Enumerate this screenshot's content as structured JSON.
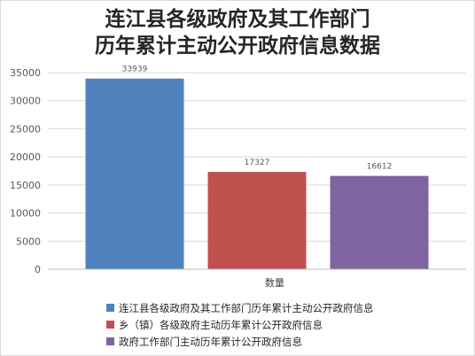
{
  "chart_data": {
    "type": "bar",
    "title_lines": [
      "连江县各级政府及其工作部门",
      "历年累计主动公开政府信息数据"
    ],
    "categories": [
      "数量"
    ],
    "series": [
      {
        "name": "连江县各级政府及其工作部门历年累计主动公开政府信息",
        "values": [
          33939
        ],
        "color": "#4f81bd"
      },
      {
        "name": "乡（镇）各级政府主动历年累计公开政府信息",
        "values": [
          17327
        ],
        "color": "#c0504d"
      },
      {
        "name": "政府工作部门主动历年累计公开政府信息",
        "values": [
          16612
        ],
        "color": "#8064a2"
      }
    ],
    "y_ticks": [
      0,
      5000,
      10000,
      15000,
      20000,
      25000,
      30000,
      35000
    ],
    "ylim": [
      0,
      35000
    ],
    "grid": true,
    "legend_position": "bottom"
  }
}
